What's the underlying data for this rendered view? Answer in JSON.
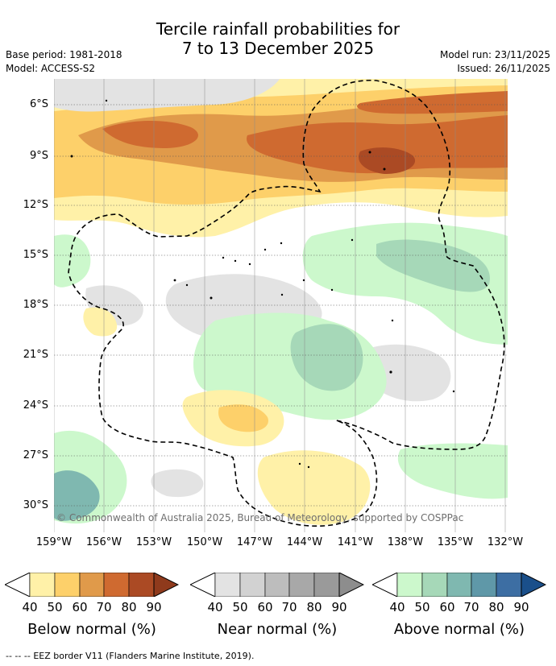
{
  "title": {
    "line1": "Tercile rainfall probabilities for",
    "line2": "7 to 13 December 2025"
  },
  "meta": {
    "base_period": "Base period: 1981-2018",
    "model": "Model: ACCESS-S2",
    "model_run": "Model run: 23/11/2025",
    "issued": "Issued: 26/11/2025"
  },
  "map": {
    "lat_labels": [
      "6°S",
      "9°S",
      "12°S",
      "15°S",
      "18°S",
      "21°S",
      "24°S",
      "27°S",
      "30°S"
    ],
    "lon_labels": [
      "159°W",
      "156°W",
      "153°W",
      "150°W",
      "147°W",
      "144°W",
      "141°W",
      "138°W",
      "135°W",
      "132°W"
    ],
    "copyright": "© Commonwealth of Australia 2025, Bureau of Meteorology, supported by COSPPac",
    "colors": {
      "below": [
        "#fff1a8",
        "#fdd06a",
        "#e09a4a",
        "#cf6a30",
        "#ab4a24"
      ],
      "near": [
        "#e3e3e3",
        "#d2d2d2",
        "#bdbdbd",
        "#a8a8a8",
        "#8d8d8d"
      ],
      "above": [
        "#ccf8cc",
        "#a6d8b8",
        "#7fb8b0",
        "#5f98a8",
        "#3d6ea3",
        "#1a4f8a"
      ]
    }
  },
  "legend": {
    "ticks": [
      "40",
      "50",
      "60",
      "70",
      "80",
      "90"
    ],
    "below_label": "Below normal (%)",
    "near_label": "Near normal (%)",
    "above_label": "Above normal (%)"
  },
  "footer": {
    "line_sample": "--  --  --",
    "text": "EEZ border V11 (Flanders Marine Institute, 2019)."
  }
}
